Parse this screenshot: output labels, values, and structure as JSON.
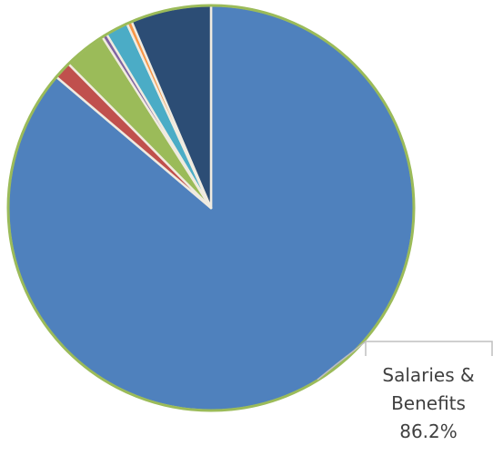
{
  "chart_data": {
    "type": "pie",
    "title": "",
    "start_angle_deg": 0,
    "direction": "clockwise",
    "slices": [
      {
        "name": "Salaries & Benefits",
        "value": 86.2,
        "color": "#4f81bd"
      },
      {
        "name": "",
        "value": 1.4,
        "color": "#c0504d"
      },
      {
        "name": "",
        "value": 3.4,
        "color": "#9bbb59"
      },
      {
        "name": "",
        "value": 0.4,
        "color": "#8064a2"
      },
      {
        "name": "",
        "value": 1.8,
        "color": "#4bacc6"
      },
      {
        "name": "",
        "value": 0.4,
        "color": "#f79646"
      },
      {
        "name": "",
        "value": 6.4,
        "color": "#2c4d75"
      }
    ],
    "slice_border_color": "#f0ebe0",
    "outer_ring_color": "#9bbb59",
    "data_labels": [
      {
        "slice_index": 0,
        "line1": "Salaries &",
        "line2": "Benefits",
        "line3": "86.2%"
      }
    ],
    "callout_border_color": "#bfbfbf",
    "legend": "none"
  }
}
